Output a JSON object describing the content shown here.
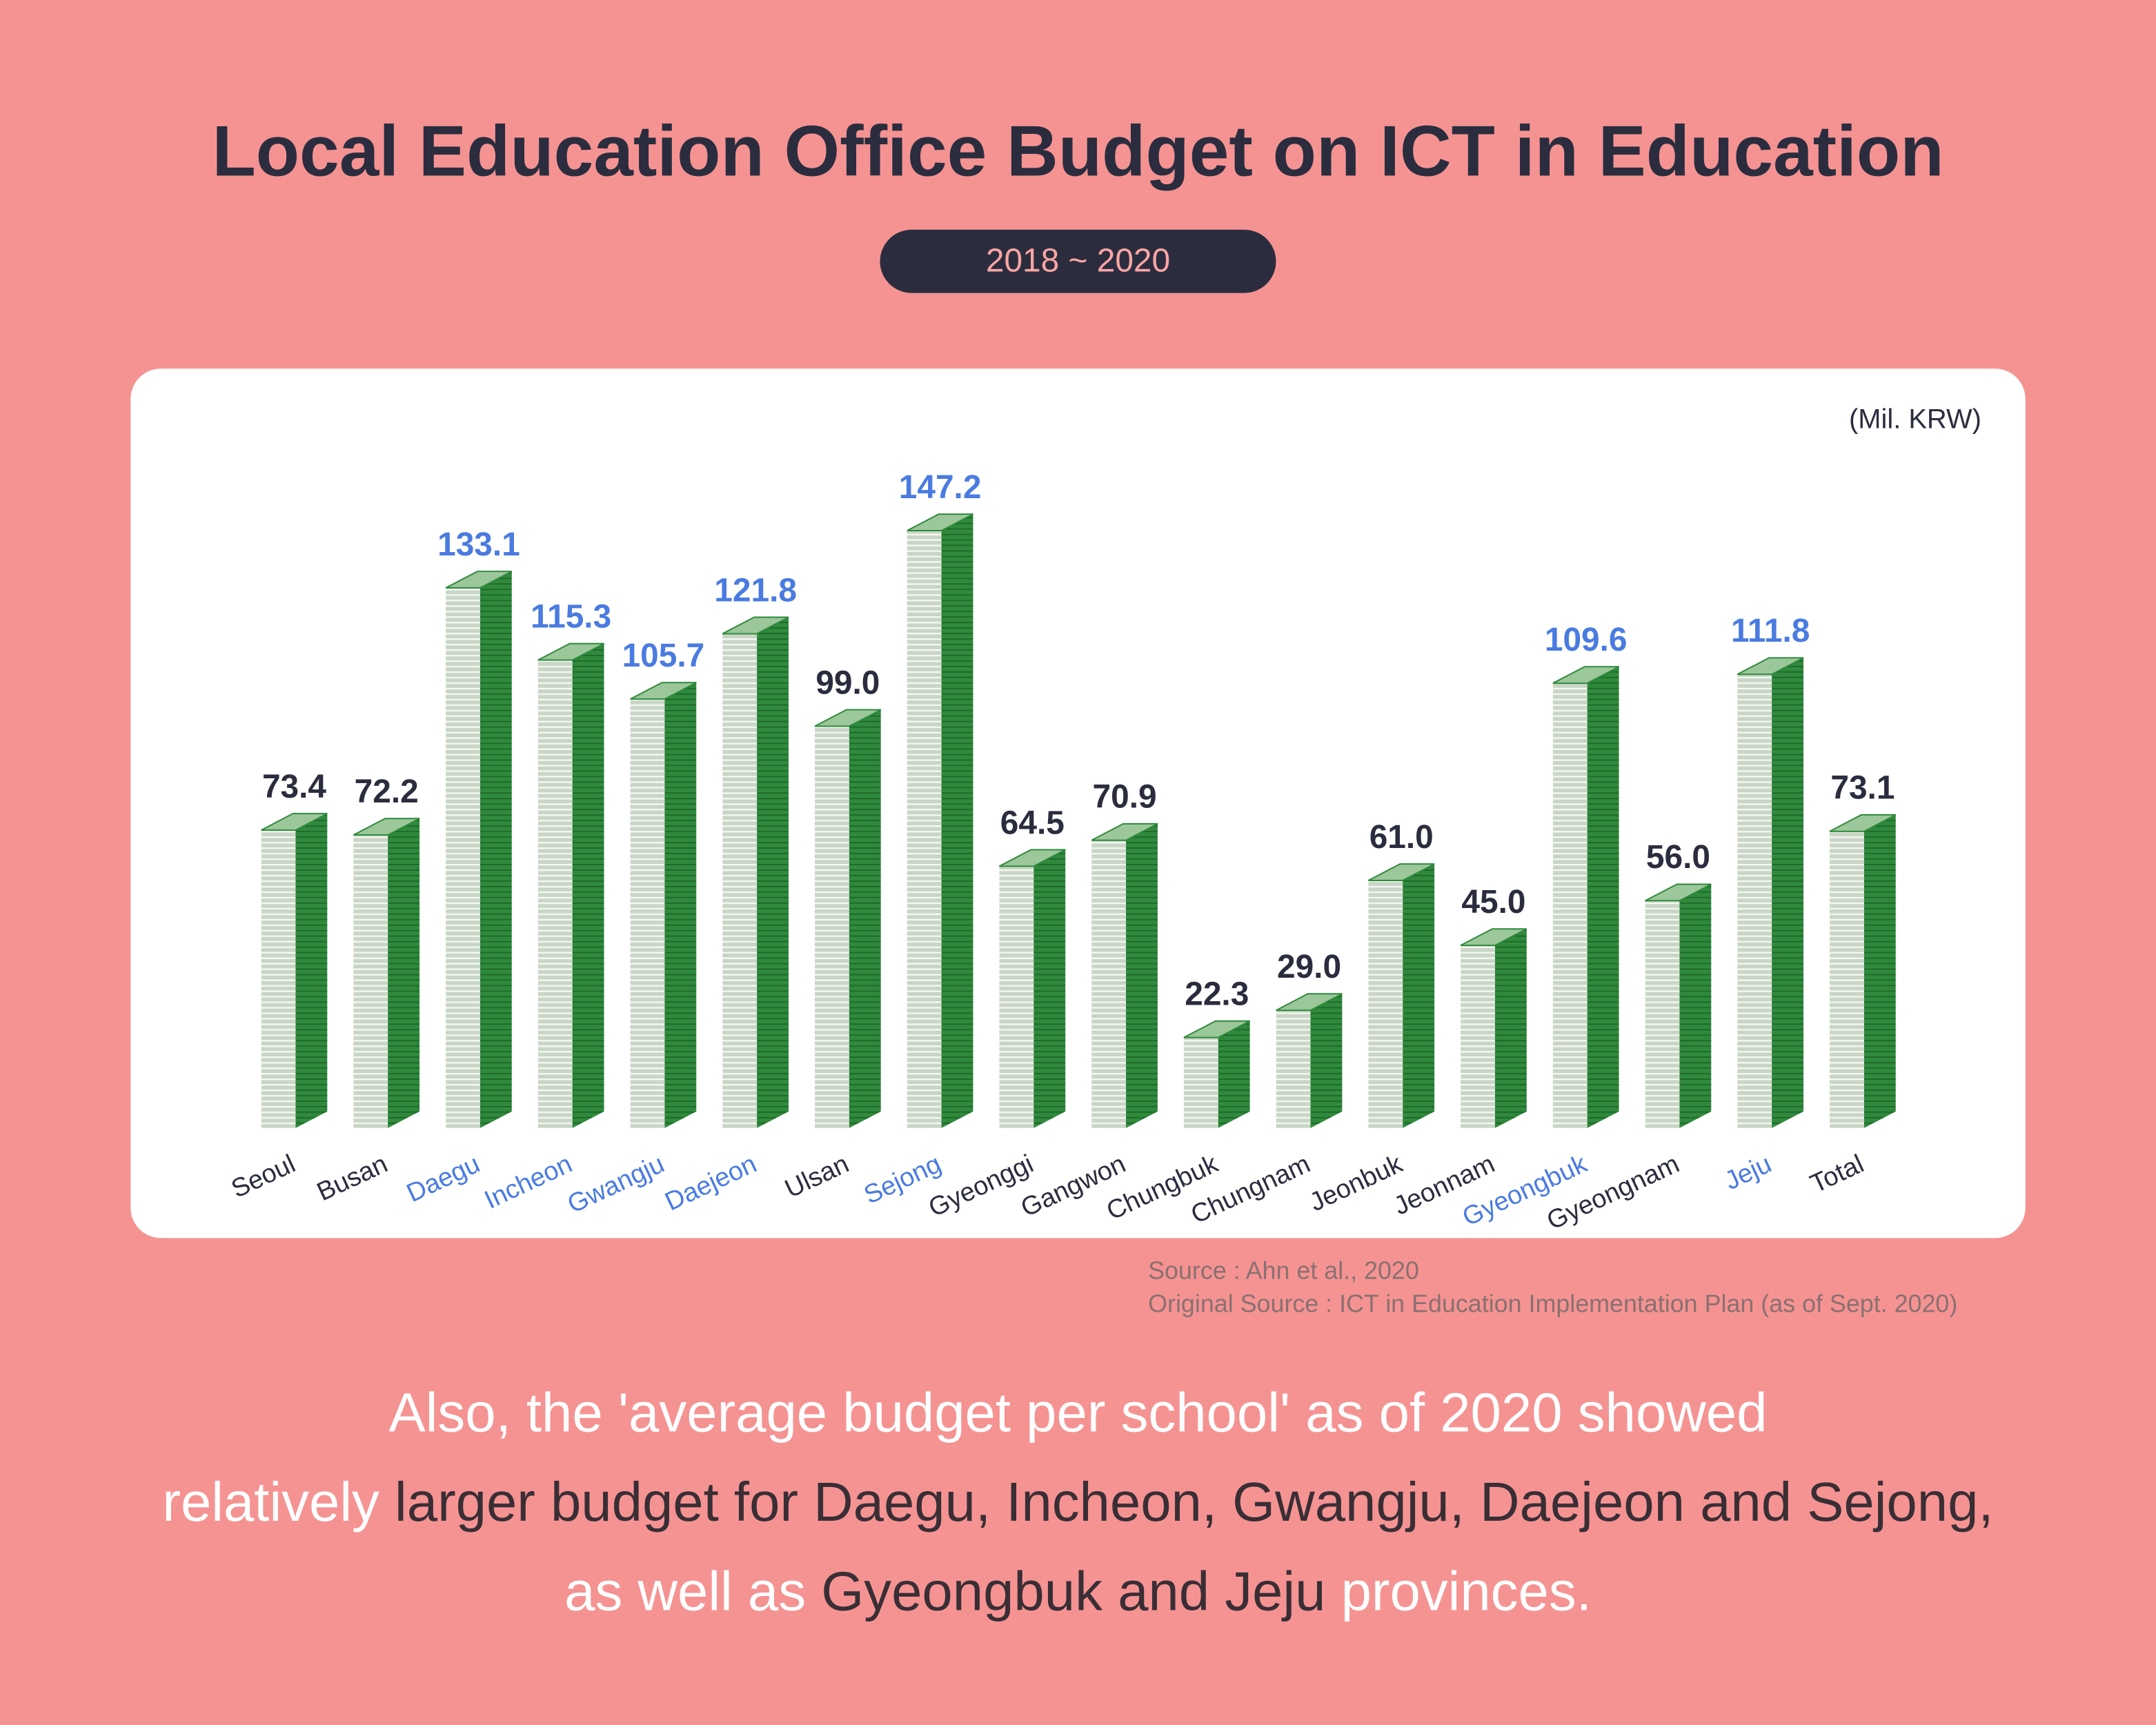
{
  "chart_data": {
    "type": "bar",
    "title": "Local Education Office Budget on ICT in Education",
    "subtitle": "2018 ~ 2020",
    "unit_label": "(Mil. KRW)",
    "categories": [
      "Seoul",
      "Busan",
      "Daegu",
      "Incheon",
      "Gwangju",
      "Daejeon",
      "Ulsan",
      "Sejong",
      "Gyeonggi",
      "Gangwon",
      "Chungbuk",
      "Chungnam",
      "Jeonbuk",
      "Jeonnam",
      "Gyeongbuk",
      "Gyeongnam",
      "Jeju",
      "Total"
    ],
    "values": [
      73.4,
      72.2,
      133.1,
      115.3,
      105.7,
      121.8,
      99.0,
      147.2,
      64.5,
      70.9,
      22.3,
      29.0,
      61.0,
      45.0,
      109.6,
      56.0,
      111.8,
      73.1
    ],
    "value_labels": [
      "73.4",
      "72.2",
      "133.1",
      "115.3",
      "105.7",
      "121.8",
      "99.0",
      "147.2",
      "64.5",
      "70.9",
      "22.3",
      "29.0",
      "61.0",
      "45.0",
      "109.6",
      "56.0",
      "111.8",
      "73.1"
    ],
    "label_colors": [
      "#2b2d3e",
      "#2b2d3e",
      "#4a7be0",
      "#4a7be0",
      "#4a7be0",
      "#4a7be0",
      "#2b2d3e",
      "#4a7be0",
      "#2b2d3e",
      "#2b2d3e",
      "#2b2d3e",
      "#2b2d3e",
      "#2b2d3e",
      "#2b2d3e",
      "#4a7be0",
      "#2b2d3e",
      "#4a7be0",
      "#2b2d3e"
    ],
    "color": "#2f8a3c",
    "source": [
      "Source : Ahn et al., 2020",
      "Original Source : ICT in Education Implementation Plan (as of Sept. 2020)"
    ]
  },
  "footer": {
    "lines": [
      [
        {
          "text": "Also, the 'average budget per school' as of 2020 showed",
          "color": "#ffffff"
        }
      ],
      [
        {
          "text": "relatively ",
          "color": "#ffffff"
        },
        {
          "text": "larger budget for Daegu, Incheon, Gwangju, Daejeon and Sejong,",
          "color": "#3a2e35"
        }
      ],
      [
        {
          "text": "as well as ",
          "color": "#ffffff"
        },
        {
          "text": "Gyeongbuk and Jeju",
          "color": "#3a2e35"
        },
        {
          "text": " provinces.",
          "color": "#ffffff"
        }
      ]
    ]
  }
}
